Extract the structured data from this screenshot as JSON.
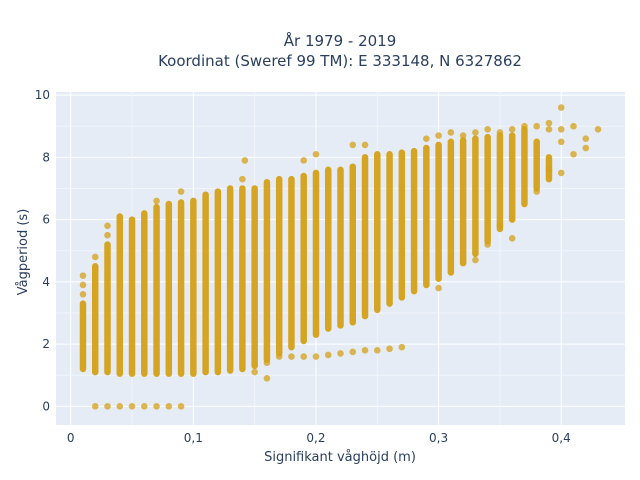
{
  "chart_data": {
    "type": "scatter",
    "title_line1": "År 1979 - 2019",
    "title_line2": "Koordinat (Sweref 99 TM): E 333148, N 6327862",
    "xlabel": "Signifikant våghöjd (m)",
    "ylabel": "Vågperiod (s)",
    "xlim": [
      -0.012,
      0.452
    ],
    "ylim": [
      -0.6,
      10.1
    ],
    "x_ticks": [
      0,
      0.1,
      0.2,
      0.3,
      0.4
    ],
    "x_tick_labels": [
      "0",
      "0,1",
      "0,2",
      "0,3",
      "0,4"
    ],
    "y_ticks": [
      0,
      2,
      4,
      6,
      8,
      10
    ],
    "y_tick_labels": [
      "0",
      "2",
      "4",
      "6",
      "8",
      "10"
    ],
    "grid": true,
    "marker_color": "#d4a017",
    "columns": [
      {
        "x": 0.01,
        "ymin": 1.2,
        "ymax": 3.3
      },
      {
        "x": 0.02,
        "ymin": 1.1,
        "ymax": 4.5
      },
      {
        "x": 0.03,
        "ymin": 1.1,
        "ymax": 5.2
      },
      {
        "x": 0.04,
        "ymin": 1.05,
        "ymax": 6.1
      },
      {
        "x": 0.05,
        "ymin": 1.05,
        "ymax": 6.0
      },
      {
        "x": 0.06,
        "ymin": 1.05,
        "ymax": 6.2
      },
      {
        "x": 0.07,
        "ymin": 1.05,
        "ymax": 6.4
      },
      {
        "x": 0.08,
        "ymin": 1.05,
        "ymax": 6.5
      },
      {
        "x": 0.09,
        "ymin": 1.05,
        "ymax": 6.55
      },
      {
        "x": 0.1,
        "ymin": 1.05,
        "ymax": 6.6
      },
      {
        "x": 0.11,
        "ymin": 1.1,
        "ymax": 6.8
      },
      {
        "x": 0.12,
        "ymin": 1.1,
        "ymax": 6.9
      },
      {
        "x": 0.13,
        "ymin": 1.15,
        "ymax": 7.0
      },
      {
        "x": 0.14,
        "ymin": 1.2,
        "ymax": 7.0
      },
      {
        "x": 0.15,
        "ymin": 1.3,
        "ymax": 7.0
      },
      {
        "x": 0.16,
        "ymin": 1.5,
        "ymax": 7.2
      },
      {
        "x": 0.17,
        "ymin": 1.7,
        "ymax": 7.3
      },
      {
        "x": 0.18,
        "ymin": 1.9,
        "ymax": 7.3
      },
      {
        "x": 0.19,
        "ymin": 2.1,
        "ymax": 7.4
      },
      {
        "x": 0.2,
        "ymin": 2.3,
        "ymax": 7.5
      },
      {
        "x": 0.21,
        "ymin": 2.5,
        "ymax": 7.6
      },
      {
        "x": 0.22,
        "ymin": 2.6,
        "ymax": 7.6
      },
      {
        "x": 0.23,
        "ymin": 2.7,
        "ymax": 7.7
      },
      {
        "x": 0.24,
        "ymin": 2.9,
        "ymax": 8.0
      },
      {
        "x": 0.25,
        "ymin": 3.1,
        "ymax": 8.1
      },
      {
        "x": 0.26,
        "ymin": 3.3,
        "ymax": 8.1
      },
      {
        "x": 0.27,
        "ymin": 3.5,
        "ymax": 8.15
      },
      {
        "x": 0.28,
        "ymin": 3.7,
        "ymax": 8.2
      },
      {
        "x": 0.29,
        "ymin": 3.9,
        "ymax": 8.3
      },
      {
        "x": 0.3,
        "ymin": 4.1,
        "ymax": 8.4
      },
      {
        "x": 0.31,
        "ymin": 4.3,
        "ymax": 8.5
      },
      {
        "x": 0.32,
        "ymin": 4.6,
        "ymax": 8.55
      },
      {
        "x": 0.33,
        "ymin": 4.9,
        "ymax": 8.6
      },
      {
        "x": 0.34,
        "ymin": 5.3,
        "ymax": 8.65
      },
      {
        "x": 0.35,
        "ymin": 5.7,
        "ymax": 8.7
      },
      {
        "x": 0.36,
        "ymin": 6.0,
        "ymax": 8.7
      },
      {
        "x": 0.37,
        "ymin": 6.5,
        "ymax": 8.9
      },
      {
        "x": 0.38,
        "ymin": 7.0,
        "ymax": 8.5
      },
      {
        "x": 0.39,
        "ymin": 7.3,
        "ymax": 8.0
      }
    ],
    "points": [
      {
        "x": 0.02,
        "y": 0
      },
      {
        "x": 0.03,
        "y": 0
      },
      {
        "x": 0.04,
        "y": 0
      },
      {
        "x": 0.05,
        "y": 0
      },
      {
        "x": 0.06,
        "y": 0
      },
      {
        "x": 0.07,
        "y": 0
      },
      {
        "x": 0.08,
        "y": 0
      },
      {
        "x": 0.09,
        "y": 0
      },
      {
        "x": 0.01,
        "y": 4.2
      },
      {
        "x": 0.01,
        "y": 3.9
      },
      {
        "x": 0.01,
        "y": 3.6
      },
      {
        "x": 0.02,
        "y": 4.8
      },
      {
        "x": 0.03,
        "y": 5.8
      },
      {
        "x": 0.03,
        "y": 5.5
      },
      {
        "x": 0.07,
        "y": 6.6
      },
      {
        "x": 0.09,
        "y": 6.9
      },
      {
        "x": 0.14,
        "y": 7.3
      },
      {
        "x": 0.142,
        "y": 7.9
      },
      {
        "x": 0.15,
        "y": 1.1
      },
      {
        "x": 0.16,
        "y": 1.4
      },
      {
        "x": 0.16,
        "y": 0.9
      },
      {
        "x": 0.17,
        "y": 1.6
      },
      {
        "x": 0.18,
        "y": 1.6
      },
      {
        "x": 0.19,
        "y": 1.6
      },
      {
        "x": 0.2,
        "y": 1.6
      },
      {
        "x": 0.21,
        "y": 1.65
      },
      {
        "x": 0.22,
        "y": 1.7
      },
      {
        "x": 0.23,
        "y": 1.75
      },
      {
        "x": 0.24,
        "y": 1.8
      },
      {
        "x": 0.25,
        "y": 1.8
      },
      {
        "x": 0.26,
        "y": 1.85
      },
      {
        "x": 0.27,
        "y": 1.9
      },
      {
        "x": 0.19,
        "y": 7.9
      },
      {
        "x": 0.2,
        "y": 8.1
      },
      {
        "x": 0.23,
        "y": 8.4
      },
      {
        "x": 0.24,
        "y": 8.4
      },
      {
        "x": 0.29,
        "y": 8.6
      },
      {
        "x": 0.3,
        "y": 8.7
      },
      {
        "x": 0.31,
        "y": 8.8
      },
      {
        "x": 0.32,
        "y": 8.7
      },
      {
        "x": 0.33,
        "y": 8.8
      },
      {
        "x": 0.34,
        "y": 8.9
      },
      {
        "x": 0.35,
        "y": 8.8
      },
      {
        "x": 0.36,
        "y": 8.9
      },
      {
        "x": 0.37,
        "y": 9.0
      },
      {
        "x": 0.38,
        "y": 9.0
      },
      {
        "x": 0.39,
        "y": 9.1
      },
      {
        "x": 0.39,
        "y": 8.9
      },
      {
        "x": 0.4,
        "y": 9.6
      },
      {
        "x": 0.4,
        "y": 8.9
      },
      {
        "x": 0.4,
        "y": 8.5
      },
      {
        "x": 0.4,
        "y": 7.5
      },
      {
        "x": 0.41,
        "y": 9.0
      },
      {
        "x": 0.41,
        "y": 8.1
      },
      {
        "x": 0.42,
        "y": 8.6
      },
      {
        "x": 0.42,
        "y": 8.3
      },
      {
        "x": 0.43,
        "y": 8.9
      },
      {
        "x": 0.39,
        "y": 7.6
      },
      {
        "x": 0.38,
        "y": 6.9
      },
      {
        "x": 0.36,
        "y": 5.4
      },
      {
        "x": 0.35,
        "y": 5.8
      },
      {
        "x": 0.34,
        "y": 5.2
      },
      {
        "x": 0.3,
        "y": 3.8
      },
      {
        "x": 0.33,
        "y": 4.7
      }
    ]
  }
}
